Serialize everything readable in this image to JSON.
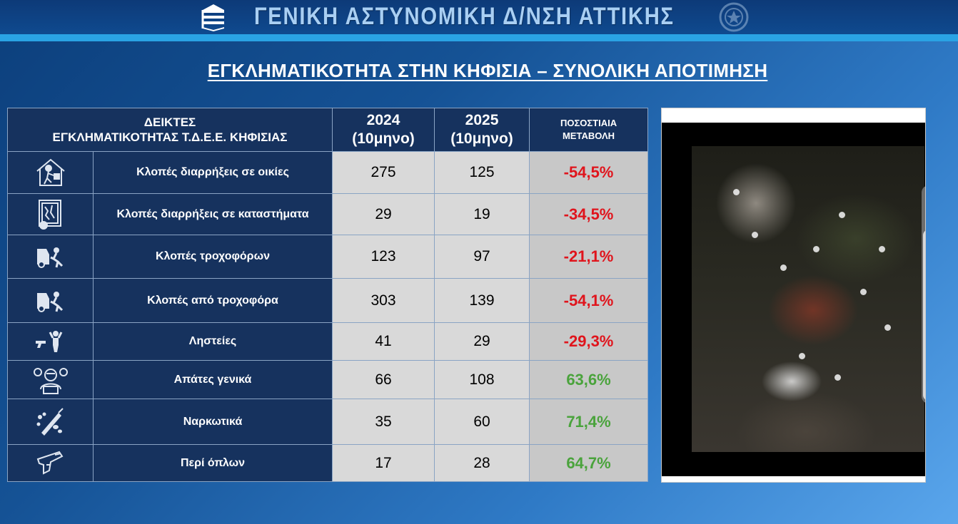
{
  "header": {
    "title": "ΓΕΝΙΚΗ ΑΣΤΥΝΟΜΙΚΗ Δ/ΝΣΗ ΑΤΤΙΚΗΣ",
    "logo_left_icon": "police-directorate-logo-icon",
    "logo_right_icon": "hellenic-police-emblem-icon"
  },
  "main_title": "ΕΓΚΛΗΜΑΤΙΚΟΤΗΤΑ ΣΤΗΝ ΚΗΦΙΣΙΑ – ΣΥΝΟΛΙΚΗ ΑΠΟΤΙΜΗΣΗ",
  "table": {
    "header_indicators_line1": "ΔΕΙΚΤΕΣ",
    "header_indicators_line2": "ΕΓΚΛΗΜΑΤΙΚΟΤΗΤΑΣ Τ.Δ.Ε.Ε. ΚΗΦΙΣΙΑΣ",
    "header_2024_line1": "2024",
    "header_2024_line2": "(10μηνο)",
    "header_2025_line1": "2025",
    "header_2025_line2": "(10μηνο)",
    "header_change_line1": "ΠΟΣΟΣΤΙΑΙΑ",
    "header_change_line2": "ΜΕΤΑΒΟΛΗ",
    "rows": [
      {
        "label": "Κλοπές διαρρήξεις σε οικίες",
        "v2024": "275",
        "v2025": "125",
        "change": "-54,5%",
        "trend": "down",
        "icon": "house-burglary-icon"
      },
      {
        "label": "Κλοπές διαρρήξεις σε καταστήματα",
        "v2024": "29",
        "v2025": "19",
        "change": "-34,5%",
        "trend": "down",
        "icon": "shop-break-in-icon"
      },
      {
        "label": "Κλοπές τροχοφόρων",
        "v2024": "123",
        "v2025": "97",
        "change": "-21,1%",
        "trend": "down",
        "icon": "vehicle-theft-icon"
      },
      {
        "label": "Κλοπές από τροχοφόρα",
        "v2024": "303",
        "v2025": "139",
        "change": "-54,1%",
        "trend": "down",
        "icon": "theft-from-vehicle-icon"
      },
      {
        "label": "Ληστείες",
        "v2024": "41",
        "v2025": "29",
        "change": "-29,3%",
        "trend": "down",
        "icon": "robbery-gunpoint-icon"
      },
      {
        "label": "Απάτες γενικά",
        "v2024": "66",
        "v2025": "108",
        "change": "63,6%",
        "trend": "up",
        "icon": "fraud-hacker-icon"
      },
      {
        "label": "Ναρκωτικά",
        "v2024": "35",
        "v2025": "60",
        "change": "71,4%",
        "trend": "up",
        "icon": "drugs-syringe-icon"
      },
      {
        "label": "Περί όπλων",
        "v2024": "17",
        "v2025": "28",
        "change": "64,7%",
        "trend": "up",
        "icon": "handgun-icon"
      }
    ]
  },
  "colors": {
    "negative": "#e0141c",
    "positive": "#4aa33c",
    "header_bg": "#16325e"
  }
}
